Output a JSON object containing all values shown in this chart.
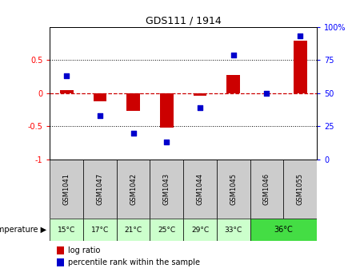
{
  "title": "GDS111 / 1914",
  "samples": [
    "GSM1041",
    "GSM1047",
    "GSM1042",
    "GSM1043",
    "GSM1044",
    "GSM1045",
    "GSM1046",
    "GSM1055"
  ],
  "log_ratio": [
    0.05,
    -0.12,
    -0.27,
    -0.52,
    -0.04,
    0.27,
    0.0,
    0.79
  ],
  "percentile": [
    63,
    33,
    20,
    13,
    39,
    79,
    50,
    93
  ],
  "ylim_left": [
    -1,
    1
  ],
  "bar_color": "#cc0000",
  "dot_color": "#0000cc",
  "zero_line_color": "#cc0000",
  "grid_color": "#000000",
  "bg_color": "#ffffff",
  "header_bg": "#cccccc",
  "temp_row_other": "#ccffcc",
  "temp_row_36": "#44dd44",
  "legend_red": "#cc0000",
  "legend_blue": "#0000cc",
  "temps_per_sample": [
    "15°C",
    "17°C",
    "21°C",
    "25°C",
    "29°C",
    "33°C",
    "36°C",
    "36°C"
  ],
  "title_fontsize": 9,
  "legend1": "log ratio",
  "legend2": "percentile rank within the sample"
}
